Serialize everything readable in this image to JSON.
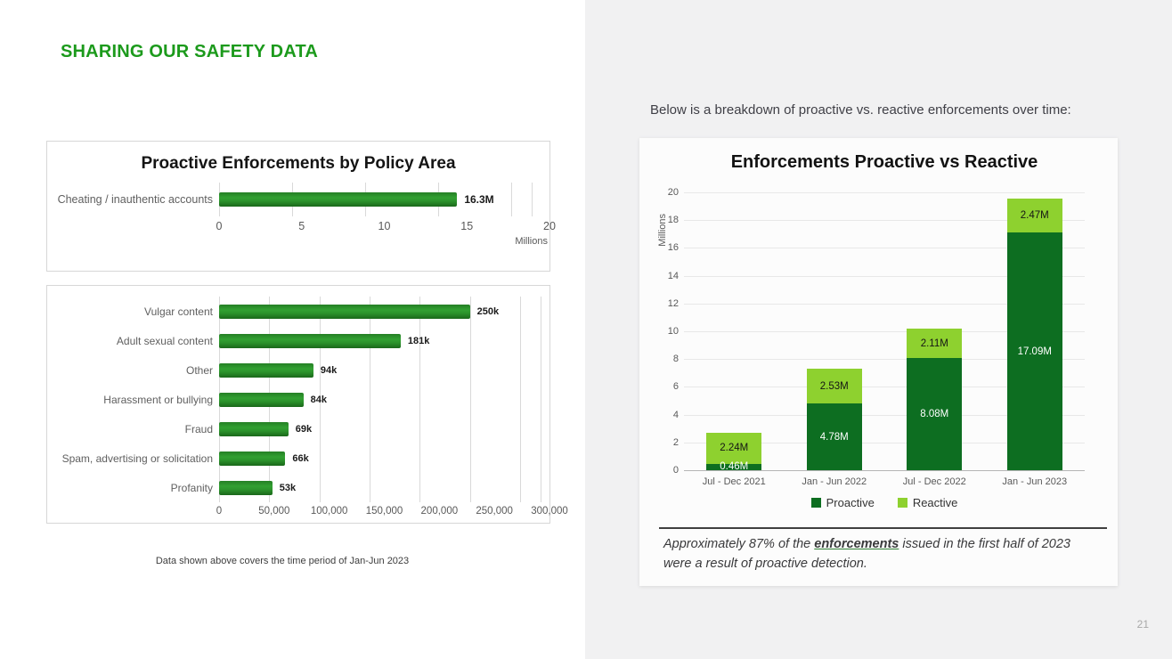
{
  "left_panel": {
    "heading": "SHARING OUR SAFETY DATA",
    "footnote": "Data shown above covers the time period of Jan-Jun 2023"
  },
  "right_panel": {
    "intro": "Below is a breakdown of proactive vs. reactive enforcements over time:",
    "note_prefix": "Approximately 87% of the ",
    "note_link": "enforcements",
    "note_suffix": " issued in the first half of 2023 were a result of proactive detection.",
    "page_number": "21"
  },
  "colors": {
    "heading_green": "#1c9a1c",
    "bar_green": "#2b922b",
    "proactive_dark_green": "#0d6e21",
    "reactive_light_green": "#8ed12f",
    "panel_background": "#f1f1f2",
    "axis_text": "#595959"
  },
  "chart_data": [
    {
      "id": "policy-area-main",
      "type": "bar",
      "orientation": "horizontal",
      "title": "Proactive Enforcements by Policy Area",
      "categories": [
        "Cheating / inauthentic accounts"
      ],
      "values": [
        16.3
      ],
      "value_labels": [
        "16.3M"
      ],
      "xlim": [
        0,
        20
      ],
      "xticks": [
        0,
        5,
        10,
        15,
        20
      ],
      "xtick_labels": [
        "0",
        "5",
        "10",
        "15",
        "20"
      ],
      "axis_unit": "Millions",
      "grid": true
    },
    {
      "id": "policy-area-breakdown",
      "type": "bar",
      "orientation": "horizontal",
      "title": "",
      "categories": [
        "Vulgar content",
        "Adult sexual content",
        "Other",
        "Harassment or bullying",
        "Fraud",
        "Spam, advertising or solicitation",
        "Profanity"
      ],
      "values": [
        250000,
        181000,
        94000,
        84000,
        69000,
        66000,
        53000
      ],
      "value_labels": [
        "250k",
        "181k",
        "94k",
        "84k",
        "69k",
        "66k",
        "53k"
      ],
      "xlim": [
        0,
        300000
      ],
      "xticks": [
        0,
        50000,
        100000,
        150000,
        200000,
        250000,
        300000
      ],
      "xtick_labels": [
        "0",
        "50,000",
        "100,000",
        "150,000",
        "200,000",
        "250,000",
        "300,000"
      ],
      "grid": true
    },
    {
      "id": "proactive-vs-reactive",
      "type": "bar",
      "subtype": "stacked-column",
      "title": "Enforcements Proactive vs Reactive",
      "categories": [
        "Jul - Dec 2021",
        "Jan - Jun 2022",
        "Jul - Dec 2022",
        "Jan - Jun 2023"
      ],
      "series": [
        {
          "name": "Proactive",
          "color": "#0d6e21",
          "label_color": "#ffffff",
          "values": [
            0.46,
            4.78,
            8.08,
            17.09
          ],
          "value_labels": [
            "0.46M",
            "4.78M",
            "8.08M",
            "17.09M"
          ]
        },
        {
          "name": "Reactive",
          "color": "#8ed12f",
          "label_color": "#151515",
          "values": [
            2.24,
            2.53,
            2.11,
            2.47
          ],
          "value_labels": [
            "2.24M",
            "2.53M",
            "2.11M",
            "2.47M"
          ]
        }
      ],
      "ylim": [
        0,
        20
      ],
      "ytick_step": 2,
      "ylabel": "Millions",
      "legend_position": "bottom",
      "grid": true
    }
  ]
}
